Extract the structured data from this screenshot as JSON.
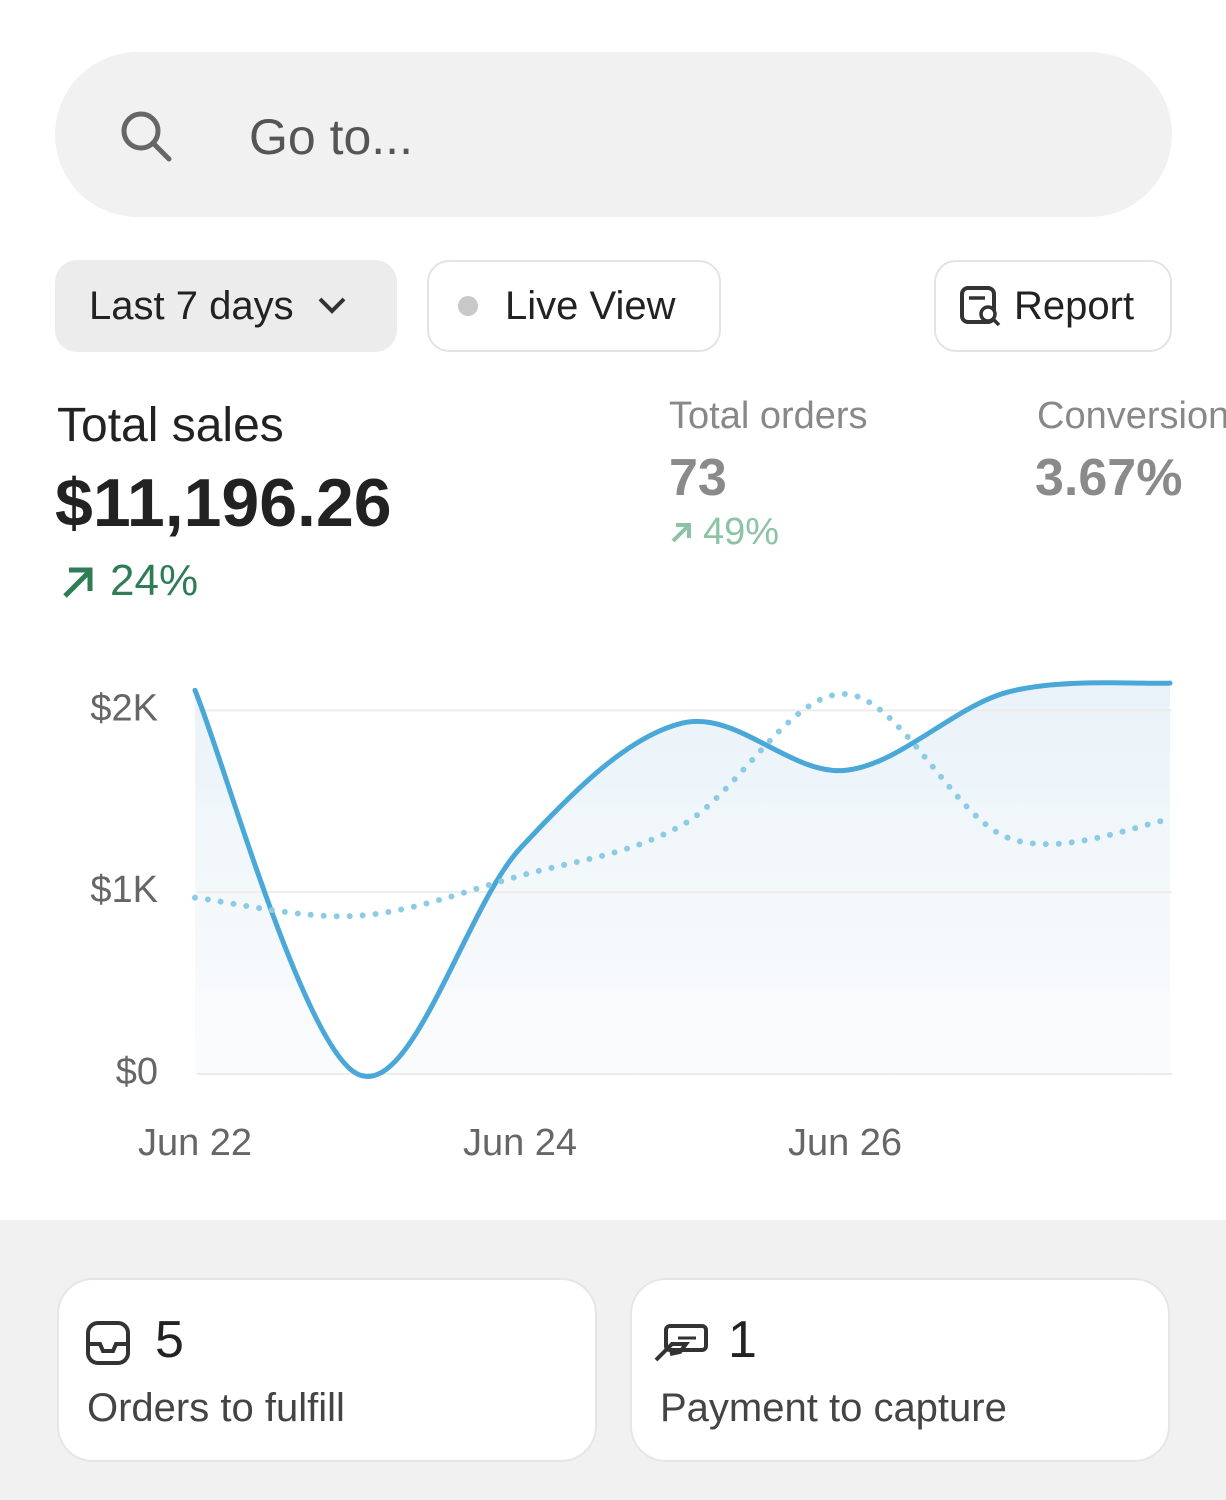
{
  "search": {
    "placeholder": "Go to..."
  },
  "filters": {
    "range": "Last 7 days",
    "live": "Live View",
    "report": "Report"
  },
  "metrics": [
    {
      "label": "Total sales",
      "value": "$11,196.26",
      "change": "24%"
    },
    {
      "label": "Total orders",
      "value": "73",
      "change": "49%"
    },
    {
      "label": "Conversion",
      "value": "3.67%"
    }
  ],
  "chart_data": {
    "type": "line",
    "categories": [
      "Jun 22",
      null,
      "Jun 24",
      null,
      "Jun 26",
      null,
      null
    ],
    "series": [
      {
        "color": "#4aa8d8",
        "dashed": false,
        "values": [
          2110,
          0,
          1240,
          1930,
          1670,
          2100,
          2150
        ]
      },
      {
        "color": "#8ccbe6",
        "dashed": true,
        "values": [
          970,
          870,
          1090,
          1370,
          2090,
          1300,
          1400
        ]
      }
    ],
    "ylim": [
      0,
      2200
    ],
    "yticks": [
      {
        "value": 0,
        "label": "$0"
      },
      {
        "value": 1000,
        "label": "$1K"
      },
      {
        "value": 2000,
        "label": "$2K"
      }
    ],
    "grid": true
  },
  "cards": [
    {
      "count": 5,
      "label": "Orders to fulfill"
    },
    {
      "count": 1,
      "label": "Payment to capture"
    }
  ]
}
